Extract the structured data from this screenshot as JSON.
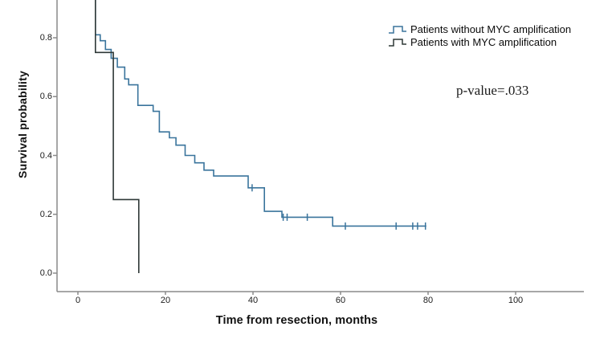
{
  "figure": {
    "y_axis_label": "Survival probability",
    "x_axis_label": "Time from resection, months",
    "p_value_text": "p-value=.033"
  },
  "legend": {
    "items": [
      {
        "label": "Patients without MYC amplification",
        "color": "#3a749c"
      },
      {
        "label": "Patients with MYC amplification",
        "color": "#2e3837"
      }
    ]
  },
  "colors": {
    "axis": "#8a8a8a",
    "background": "#ffffff",
    "curve_without_myc": "#3a749c",
    "curve_with_myc": "#2e3837"
  },
  "chart_data": {
    "type": "line",
    "subtype": "kaplan-meier-step",
    "title": "",
    "xlabel": "Time from resection, months",
    "ylabel": "Survival probability",
    "x_ticks": [
      0,
      20,
      40,
      60,
      80,
      100
    ],
    "y_ticks": [
      0.0,
      0.2,
      0.4,
      0.6,
      0.8
    ],
    "xlim_months": [
      0,
      100
    ],
    "ylim_visible": [
      0.0,
      0.93
    ],
    "grid": false,
    "legend_position": "top-right",
    "annotations": [
      {
        "text": "p-value=.033"
      }
    ],
    "series": [
      {
        "id": "without_myc",
        "name": "Patients without MYC amplification",
        "color": "#3a749c",
        "enters_from_top": true,
        "steps": [
          [
            4.0,
            0.81
          ],
          [
            5.1,
            0.79
          ],
          [
            6.3,
            0.76
          ],
          [
            7.6,
            0.73
          ],
          [
            9.0,
            0.7
          ],
          [
            10.7,
            0.66
          ],
          [
            11.6,
            0.64
          ],
          [
            13.7,
            0.57
          ],
          [
            17.2,
            0.55
          ],
          [
            18.6,
            0.48
          ],
          [
            20.9,
            0.46
          ],
          [
            22.4,
            0.435
          ],
          [
            24.5,
            0.4
          ],
          [
            26.7,
            0.375
          ],
          [
            28.8,
            0.35
          ],
          [
            31.0,
            0.33
          ],
          [
            38.9,
            0.29
          ],
          [
            42.6,
            0.21
          ],
          [
            46.6,
            0.19
          ],
          [
            58.2,
            0.16
          ]
        ],
        "end_time": 79.6,
        "censor_marks": [
          [
            39.8,
            0.29
          ],
          [
            46.9,
            0.19
          ],
          [
            47.8,
            0.19
          ],
          [
            52.4,
            0.19
          ],
          [
            61.1,
            0.16
          ],
          [
            72.7,
            0.16
          ],
          [
            76.5,
            0.16
          ],
          [
            77.6,
            0.16
          ],
          [
            79.4,
            0.16
          ]
        ]
      },
      {
        "id": "with_myc",
        "name": "Patients with MYC amplification",
        "color": "#2e3837",
        "enters_from_top": true,
        "steps": [
          [
            4.0,
            0.75
          ],
          [
            8.1,
            0.25
          ],
          [
            13.9,
            0.0
          ]
        ],
        "end_time": 13.9,
        "censor_marks": []
      }
    ]
  }
}
